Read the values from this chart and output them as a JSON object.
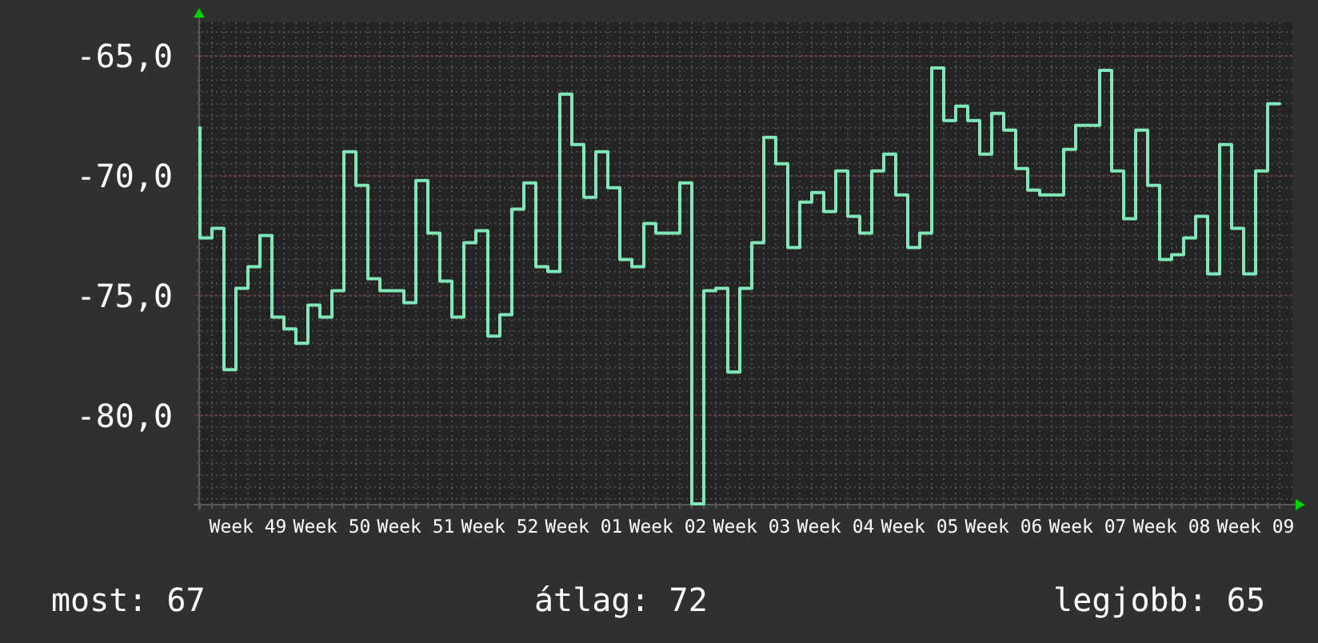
{
  "chart_data": {
    "type": "step",
    "categories": [
      null,
      null,
      null,
      null,
      "Week 49",
      null,
      null,
      null,
      null,
      null,
      null,
      "Week 50",
      null,
      null,
      null,
      null,
      null,
      null,
      "Week 51",
      null,
      null,
      null,
      null,
      null,
      null,
      "Week 52",
      null,
      null,
      null,
      null,
      null,
      null,
      "Week 01",
      null,
      null,
      null,
      null,
      null,
      null,
      "Week 02",
      null,
      null,
      null,
      null,
      null,
      null,
      "Week 03",
      null,
      null,
      null,
      null,
      null,
      null,
      "Week 04",
      null,
      null,
      null,
      null,
      null,
      null,
      "Week 05",
      null,
      null,
      null,
      null,
      null,
      null,
      "Week 06",
      null,
      null,
      null,
      null,
      null,
      null,
      "Week 07",
      null,
      null,
      null,
      null,
      null,
      null,
      "Week 08",
      null,
      null,
      null,
      null,
      null,
      null,
      "Week 09",
      null,
      null
    ],
    "values": [
      -68.0,
      -72.6,
      -72.2,
      -78.1,
      -74.7,
      -73.8,
      -72.5,
      -75.9,
      -76.4,
      -77.0,
      -75.4,
      -75.9,
      -74.8,
      -69.0,
      -70.4,
      -74.3,
      -74.8,
      -74.8,
      -75.3,
      -70.2,
      -72.4,
      -74.4,
      -75.9,
      -72.8,
      -72.3,
      -76.7,
      -75.8,
      -71.4,
      -70.3,
      -73.8,
      -74.0,
      -66.6,
      -68.7,
      -70.9,
      -69.0,
      -70.5,
      -73.5,
      -73.8,
      -72.0,
      -72.4,
      -72.4,
      -70.3,
      -83.7,
      -74.8,
      -74.7,
      -78.2,
      -74.7,
      -72.8,
      -68.4,
      -69.5,
      -73.0,
      -71.1,
      -70.7,
      -71.5,
      -69.8,
      -71.7,
      -72.4,
      -69.8,
      -69.1,
      -70.8,
      -73.0,
      -72.4,
      -65.5,
      -67.7,
      -67.1,
      -67.7,
      -69.1,
      -67.4,
      -68.1,
      -69.7,
      -70.6,
      -70.8,
      -70.8,
      -68.9,
      -67.9,
      -67.9,
      -65.6,
      -69.8,
      -71.8,
      -68.1,
      -70.4,
      -73.5,
      -73.3,
      -72.6,
      -71.7,
      -74.1,
      -68.7,
      -72.2,
      -74.1,
      -69.8,
      -67.0
    ],
    "color": "#80e8b8",
    "ylim": [
      -83.7,
      -63.6
    ],
    "yticks": [
      {
        "value": -80,
        "label": "-80,0"
      },
      {
        "value": -75,
        "label": "-75,0"
      },
      {
        "value": -70,
        "label": "-70,0"
      },
      {
        "value": -65,
        "label": "-65,0"
      }
    ],
    "grid": true,
    "annotations": [
      "most: 67",
      "átlag: 72",
      "legjobb: 65"
    ]
  }
}
